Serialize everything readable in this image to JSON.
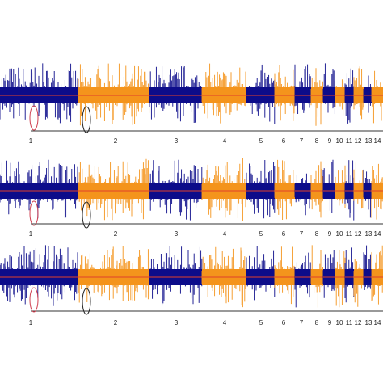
{
  "panels": [
    {
      "labels": [
        "1",
        "2",
        "3",
        "4",
        "5",
        "6",
        "7",
        "8",
        "9",
        "10",
        "11",
        "12",
        "13",
        "14"
      ]
    },
    {
      "labels": [
        "1",
        "2",
        "3",
        "4",
        "5",
        "6",
        "7",
        "8",
        "9",
        "10",
        "11",
        "12",
        "13",
        "14"
      ]
    },
    {
      "labels": [
        "1",
        "2",
        "3",
        "4",
        "5",
        "6",
        "7",
        "8",
        "9",
        "10",
        "11",
        "12",
        "13",
        "14"
      ]
    }
  ],
  "colors": [
    "#0c0c8a",
    "#f4941c"
  ]
}
